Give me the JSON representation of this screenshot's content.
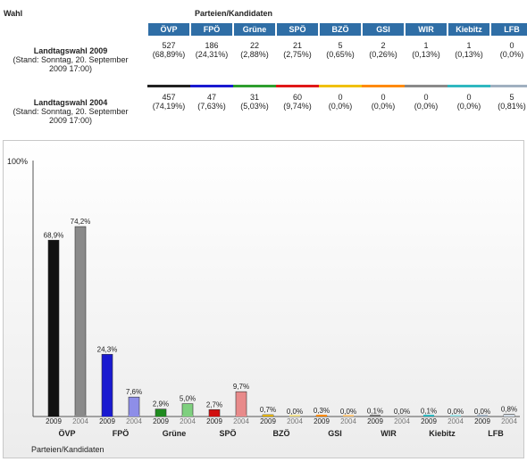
{
  "header": {
    "wahl": "Wahl",
    "parties_label": "Parteien/Kandidaten"
  },
  "parties": [
    {
      "name": "ÖVP",
      "color": "#222222"
    },
    {
      "name": "FPÖ",
      "color": "#1a1ad0"
    },
    {
      "name": "Grüne",
      "color": "#2e9e2e"
    },
    {
      "name": "SPÖ",
      "color": "#e01818"
    },
    {
      "name": "BZÖ",
      "color": "#f0c000"
    },
    {
      "name": "GSI",
      "color": "#ff8a00"
    },
    {
      "name": "WIR",
      "color": "#8a8a8a"
    },
    {
      "name": "Kiebitz",
      "color": "#30b8c0"
    },
    {
      "name": "LFB",
      "color": "#a0b0c0"
    }
  ],
  "elections": [
    {
      "name": "Landtagswahl 2009",
      "stand": "(Stand: Sonntag, 20. September 2009 17:00)",
      "votes": [
        "527",
        "186",
        "22",
        "21",
        "5",
        "2",
        "1",
        "1",
        "0"
      ],
      "percents": [
        "(68,89%)",
        "(24,31%)",
        "(2,88%)",
        "(2,75%)",
        "(0,65%)",
        "(0,26%)",
        "(0,13%)",
        "(0,13%)",
        "(0,0%)"
      ]
    },
    {
      "name": "Landtagswahl 2004",
      "stand": "(Stand: Sonntag, 20. September 2009 17:00)",
      "votes": [
        "457",
        "47",
        "31",
        "60",
        "0",
        "0",
        "0",
        "0",
        "5"
      ],
      "percents": [
        "(74,19%)",
        "(7,63%)",
        "(5,03%)",
        "(9,74%)",
        "(0,0%)",
        "(0,0%)",
        "(0,0%)",
        "(0,0%)",
        "(0,81%)"
      ]
    }
  ],
  "chart_data": {
    "type": "bar",
    "ylabel_top": "100%",
    "xlabel": "Parteien/Kandidaten",
    "ylim": [
      0,
      100
    ],
    "categories": [
      "ÖVP",
      "FPÖ",
      "Grüne",
      "SPÖ",
      "BZÖ",
      "GSI",
      "WIR",
      "Kiebitz",
      "LFB"
    ],
    "series": [
      {
        "name": "2009",
        "values": [
          68.9,
          24.3,
          2.9,
          2.7,
          0.7,
          0.3,
          0.1,
          0.1,
          0.0
        ],
        "labels": [
          "68,9%",
          "24,3%",
          "2,9%",
          "2,7%",
          "0,7%",
          "0,3%",
          "0,1%",
          "0,1%",
          "0,0%"
        ]
      },
      {
        "name": "2004",
        "values": [
          74.2,
          7.6,
          5.0,
          9.7,
          0.0,
          0.0,
          0.0,
          0.0,
          0.8
        ],
        "labels": [
          "74,2%",
          "7,6%",
          "5,0%",
          "9,7%",
          "0,0%",
          "0,0%",
          "0,0%",
          "0,0%",
          "0,8%"
        ]
      }
    ],
    "colors_2009": [
      "#111111",
      "#1a1ad0",
      "#1f8a1f",
      "#d01010",
      "#e0b000",
      "#ff8a00",
      "#777777",
      "#30b8c0",
      "#a0b0c0"
    ],
    "colors_2004": [
      "#8a8a8a",
      "#8e8ee8",
      "#7fd07f",
      "#e88a8a",
      "#f0e090",
      "#ffc880",
      "#c8c8c8",
      "#a0e0e4",
      "#d0dae4"
    ]
  }
}
